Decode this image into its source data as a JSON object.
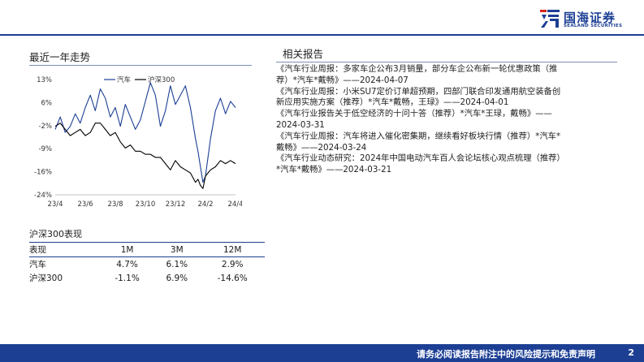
{
  "logo": {
    "cn": "国海证券",
    "en": "SEALAND SECURITIES"
  },
  "trend": {
    "title": "最近一年走势"
  },
  "related": {
    "title": "相关报告"
  },
  "chart_data": {
    "type": "line",
    "title": "",
    "x_tick_labels": [
      "23/4",
      "23/6",
      "23/8",
      "23/10",
      "23/12",
      "24/2",
      "24/4"
    ],
    "y_tick_labels": [
      "13%",
      "6%",
      "-2%",
      "-9%",
      "-16%",
      "-24%"
    ],
    "ylim": [
      -24,
      13
    ],
    "legend_position": "top-center",
    "series": [
      {
        "name": "汽车",
        "color": "#1c3f94",
        "x": [
          0,
          2,
          4,
          6,
          8,
          10,
          12,
          14,
          16,
          18,
          20,
          22,
          24,
          26,
          28,
          30,
          32,
          34,
          36,
          38,
          40,
          42,
          44,
          46,
          48,
          50,
          52,
          54,
          56,
          57,
          58,
          59,
          60,
          61,
          62,
          64,
          66,
          68,
          70,
          72
        ],
        "values": [
          -3,
          1,
          -4,
          -2,
          2,
          -1,
          4,
          8,
          3,
          10,
          7,
          1,
          4,
          -2,
          5,
          1,
          -3,
          0,
          6,
          12,
          8,
          -2,
          3,
          11,
          5,
          8,
          11,
          4,
          -6,
          -10,
          -15,
          -20,
          -18,
          -12,
          -6,
          3,
          7,
          2,
          6,
          4
        ]
      },
      {
        "name": "沪深300",
        "color": "#000000",
        "x": [
          0,
          2,
          4,
          6,
          8,
          10,
          12,
          14,
          16,
          18,
          20,
          22,
          24,
          26,
          28,
          30,
          32,
          34,
          36,
          38,
          40,
          42,
          44,
          46,
          48,
          50,
          52,
          54,
          56,
          57,
          58,
          59,
          60,
          61,
          62,
          64,
          66,
          68,
          70,
          72
        ],
        "values": [
          -2,
          -1,
          -3,
          -5,
          -4,
          -3,
          -5,
          -4,
          -1,
          -1,
          -3,
          -5,
          -4,
          -7,
          -9,
          -8,
          -10,
          -10,
          -11,
          -11,
          -12,
          -12,
          -14,
          -16,
          -13,
          -15,
          -16,
          -17,
          -20,
          -19,
          -21,
          -22,
          -18,
          -17,
          -16,
          -15,
          -13,
          -14,
          -13,
          -14
        ]
      }
    ]
  },
  "performance": {
    "title": "沪深300表现",
    "header": [
      "表现",
      "1M",
      "3M",
      "12M"
    ],
    "rows": [
      [
        "汽车",
        "4.7%",
        "6.1%",
        "2.9%"
      ],
      [
        "沪深300",
        "-1.1%",
        "6.9%",
        "-14.6%"
      ]
    ]
  },
  "reports": [
    [
      "《汽车行业周报：多家车企公布3月销量，部分车企公布新一轮优惠政策（推",
      "荐）*汽车*戴畅》——2024-04-07"
    ],
    [
      "《汽车行业周报：小米SU7定价订单超预期，四部门联合印发通用航空装备创",
      "新应用实施方案（推荐）*汽车*戴畅，王琭》——2024-04-01"
    ],
    [
      "《汽车行业报告关于低空经济的十问十答（推荐）*汽车*王琭，戴畅》——",
      "2024-03-31"
    ],
    [
      "《汽车行业周报：汽车将进入催化密集期，继续看好板块行情（推荐）*汽车*",
      "戴畅》——2024-03-24"
    ],
    [
      "《汽车行业动态研究：2024年中国电动汽车百人会论坛核心观点梳理（推荐）",
      "*汽车*戴畅》——2024-03-21"
    ]
  ],
  "footer": {
    "disclaimer": "请务必阅读报告附注中的风险提示和免责声明",
    "page": "2"
  }
}
